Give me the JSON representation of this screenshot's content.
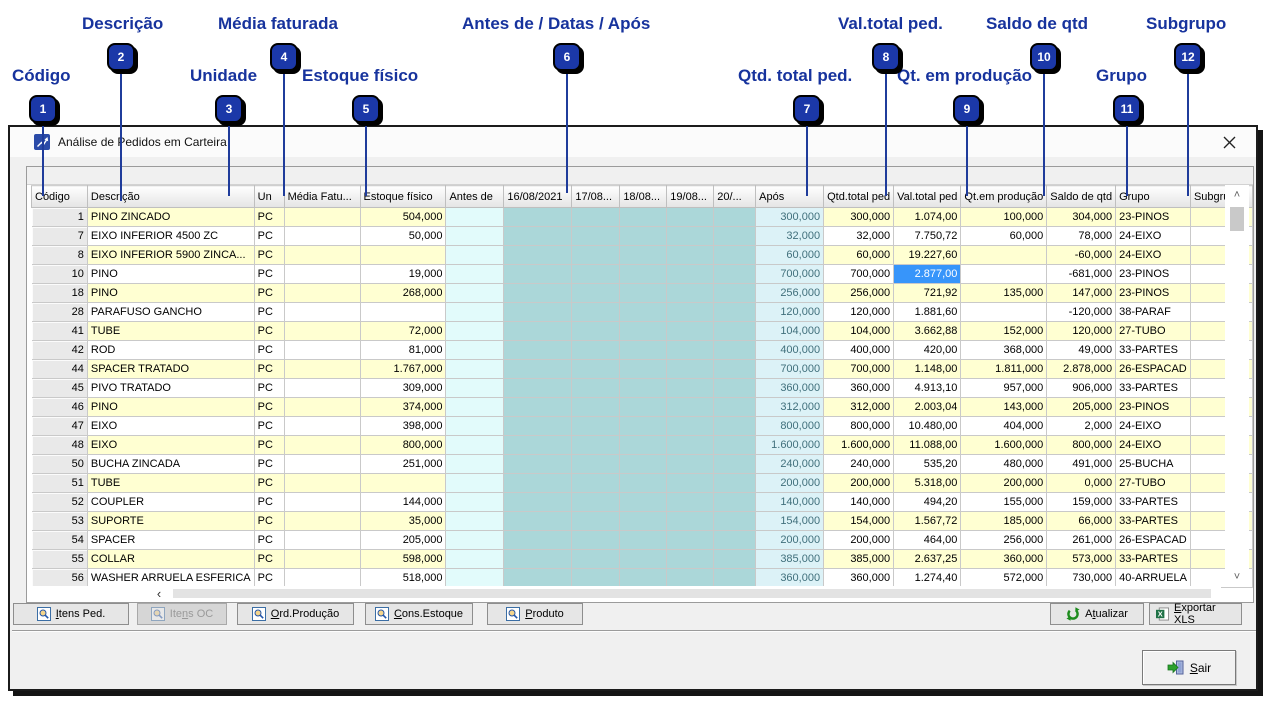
{
  "window": {
    "title": "Análise de Pedidos em Carteira"
  },
  "colors": {
    "annotation_navy": "#17339D",
    "stripe_yellow": "#FFFFD2",
    "date_teal": "#ABD7D9",
    "antes_cyan": "#E2FBFB",
    "apos_cyan": "#DCF2F7",
    "selected_blue": "#3795FA",
    "fixed_gray": "#E9E9E9"
  },
  "icons": {
    "app": "chart-arrow-icon",
    "close": "x-icon",
    "search": "magnifier-icon",
    "refresh": "circular-arrows-icon",
    "excel": "xls-sheet-icon",
    "exit": "door-arrow-icon",
    "scroll_up": "˄",
    "scroll_down": "˅",
    "scroll_left": "‹"
  },
  "annotations": [
    {
      "num": "1",
      "label": "Código"
    },
    {
      "num": "2",
      "label": "Descrição"
    },
    {
      "num": "3",
      "label": "Unidade"
    },
    {
      "num": "4",
      "label": "Média faturada"
    },
    {
      "num": "5",
      "label": "Estoque físico"
    },
    {
      "num": "6",
      "label": "Antes de / Datas / Após"
    },
    {
      "num": "7",
      "label": "Qtd. total ped."
    },
    {
      "num": "8",
      "label": "Val.total ped."
    },
    {
      "num": "9",
      "label": "Qt. em produção"
    },
    {
      "num": "10",
      "label": "Saldo de qtd"
    },
    {
      "num": "11",
      "label": "Grupo"
    },
    {
      "num": "12",
      "label": "Subgrupo"
    }
  ],
  "grid": {
    "columns": [
      {
        "key": "codigo",
        "label": "Código"
      },
      {
        "key": "descricao",
        "label": "Descrição"
      },
      {
        "key": "un",
        "label": "Un"
      },
      {
        "key": "media",
        "label": "Média Fatu..."
      },
      {
        "key": "estoque",
        "label": "Estoque físico"
      },
      {
        "key": "antes",
        "label": "Antes de"
      },
      {
        "key": "d1",
        "label": "16/08/2021"
      },
      {
        "key": "d2",
        "label": "17/08..."
      },
      {
        "key": "d3",
        "label": "18/08..."
      },
      {
        "key": "d4",
        "label": "19/08..."
      },
      {
        "key": "d5",
        "label": "20/..."
      },
      {
        "key": "apos",
        "label": "Após"
      },
      {
        "key": "qtd_total",
        "label": "Qtd.total ped"
      },
      {
        "key": "val_total",
        "label": "Val.total ped"
      },
      {
        "key": "qt_prod",
        "label": "Qt.em produção"
      },
      {
        "key": "saldo",
        "label": "Saldo de qtd"
      },
      {
        "key": "grupo",
        "label": "Grupo"
      },
      {
        "key": "subgrupo",
        "label": "Subgrupo"
      }
    ],
    "rows": [
      {
        "codigo": "1",
        "descricao": "PINO ZINCADO",
        "un": "PC",
        "media": "",
        "estoque": "504,000",
        "antes": "",
        "d1": "",
        "d2": "",
        "d3": "",
        "d4": "",
        "d5": "",
        "apos": "300,000",
        "qtd_total": "300,000",
        "val_total": "1.074,00",
        "qt_prod": "100,000",
        "saldo": "304,000",
        "grupo": "23-PINOS",
        "subgrupo": ""
      },
      {
        "codigo": "7",
        "descricao": "EIXO INFERIOR 4500 ZC",
        "un": "PC",
        "media": "",
        "estoque": "50,000",
        "antes": "",
        "d1": "",
        "d2": "",
        "d3": "",
        "d4": "",
        "d5": "",
        "apos": "32,000",
        "qtd_total": "32,000",
        "val_total": "7.750,72",
        "qt_prod": "60,000",
        "saldo": "78,000",
        "grupo": "24-EIXO",
        "subgrupo": ""
      },
      {
        "codigo": "8",
        "descricao": "EIXO INFERIOR 5900 ZINCA...",
        "un": "PC",
        "media": "",
        "estoque": "",
        "antes": "",
        "d1": "",
        "d2": "",
        "d3": "",
        "d4": "",
        "d5": "",
        "apos": "60,000",
        "qtd_total": "60,000",
        "val_total": "19.227,60",
        "qt_prod": "",
        "saldo": "-60,000",
        "grupo": "24-EIXO",
        "subgrupo": ""
      },
      {
        "codigo": "10",
        "descricao": "PINO",
        "un": "PC",
        "media": "",
        "estoque": "19,000",
        "antes": "",
        "d1": "",
        "d2": "",
        "d3": "",
        "d4": "",
        "d5": "",
        "apos": "700,000",
        "qtd_total": "700,000",
        "val_total": "2.877,00",
        "qt_prod": "",
        "saldo": "-681,000",
        "grupo": "23-PINOS",
        "subgrupo": "",
        "selected": "val_total"
      },
      {
        "codigo": "18",
        "descricao": "PINO",
        "un": "PC",
        "media": "",
        "estoque": "268,000",
        "antes": "",
        "d1": "",
        "d2": "",
        "d3": "",
        "d4": "",
        "d5": "",
        "apos": "256,000",
        "qtd_total": "256,000",
        "val_total": "721,92",
        "qt_prod": "135,000",
        "saldo": "147,000",
        "grupo": "23-PINOS",
        "subgrupo": ""
      },
      {
        "codigo": "28",
        "descricao": "PARAFUSO GANCHO",
        "un": "PC",
        "media": "",
        "estoque": "",
        "antes": "",
        "d1": "",
        "d2": "",
        "d3": "",
        "d4": "",
        "d5": "",
        "apos": "120,000",
        "qtd_total": "120,000",
        "val_total": "1.881,60",
        "qt_prod": "",
        "saldo": "-120,000",
        "grupo": "38-PARAF",
        "subgrupo": ""
      },
      {
        "codigo": "41",
        "descricao": "TUBE",
        "un": "PC",
        "media": "",
        "estoque": "72,000",
        "antes": "",
        "d1": "",
        "d2": "",
        "d3": "",
        "d4": "",
        "d5": "",
        "apos": "104,000",
        "qtd_total": "104,000",
        "val_total": "3.662,88",
        "qt_prod": "152,000",
        "saldo": "120,000",
        "grupo": "27-TUBO",
        "subgrupo": ""
      },
      {
        "codigo": "42",
        "descricao": "ROD",
        "un": "PC",
        "media": "",
        "estoque": "81,000",
        "antes": "",
        "d1": "",
        "d2": "",
        "d3": "",
        "d4": "",
        "d5": "",
        "apos": "400,000",
        "qtd_total": "400,000",
        "val_total": "420,00",
        "qt_prod": "368,000",
        "saldo": "49,000",
        "grupo": "33-PARTES",
        "subgrupo": ""
      },
      {
        "codigo": "44",
        "descricao": "SPACER TRATADO",
        "un": "PC",
        "media": "",
        "estoque": "1.767,000",
        "antes": "",
        "d1": "",
        "d2": "",
        "d3": "",
        "d4": "",
        "d5": "",
        "apos": "700,000",
        "qtd_total": "700,000",
        "val_total": "1.148,00",
        "qt_prod": "1.811,000",
        "saldo": "2.878,000",
        "grupo": "26-ESPACAD",
        "subgrupo": ""
      },
      {
        "codigo": "45",
        "descricao": "PIVO TRATADO",
        "un": "PC",
        "media": "",
        "estoque": "309,000",
        "antes": "",
        "d1": "",
        "d2": "",
        "d3": "",
        "d4": "",
        "d5": "",
        "apos": "360,000",
        "qtd_total": "360,000",
        "val_total": "4.913,10",
        "qt_prod": "957,000",
        "saldo": "906,000",
        "grupo": "33-PARTES",
        "subgrupo": ""
      },
      {
        "codigo": "46",
        "descricao": "PINO",
        "un": "PC",
        "media": "",
        "estoque": "374,000",
        "antes": "",
        "d1": "",
        "d2": "",
        "d3": "",
        "d4": "",
        "d5": "",
        "apos": "312,000",
        "qtd_total": "312,000",
        "val_total": "2.003,04",
        "qt_prod": "143,000",
        "saldo": "205,000",
        "grupo": "23-PINOS",
        "subgrupo": ""
      },
      {
        "codigo": "47",
        "descricao": "EIXO",
        "un": "PC",
        "media": "",
        "estoque": "398,000",
        "antes": "",
        "d1": "",
        "d2": "",
        "d3": "",
        "d4": "",
        "d5": "",
        "apos": "800,000",
        "qtd_total": "800,000",
        "val_total": "10.480,00",
        "qt_prod": "404,000",
        "saldo": "2,000",
        "grupo": "24-EIXO",
        "subgrupo": ""
      },
      {
        "codigo": "48",
        "descricao": "EIXO",
        "un": "PC",
        "media": "",
        "estoque": "800,000",
        "antes": "",
        "d1": "",
        "d2": "",
        "d3": "",
        "d4": "",
        "d5": "",
        "apos": "1.600,000",
        "qtd_total": "1.600,000",
        "val_total": "11.088,00",
        "qt_prod": "1.600,000",
        "saldo": "800,000",
        "grupo": "24-EIXO",
        "subgrupo": ""
      },
      {
        "codigo": "50",
        "descricao": "BUCHA ZINCADA",
        "un": "PC",
        "media": "",
        "estoque": "251,000",
        "antes": "",
        "d1": "",
        "d2": "",
        "d3": "",
        "d4": "",
        "d5": "",
        "apos": "240,000",
        "qtd_total": "240,000",
        "val_total": "535,20",
        "qt_prod": "480,000",
        "saldo": "491,000",
        "grupo": "25-BUCHA",
        "subgrupo": ""
      },
      {
        "codigo": "51",
        "descricao": "TUBE",
        "un": "PC",
        "media": "",
        "estoque": "",
        "antes": "",
        "d1": "",
        "d2": "",
        "d3": "",
        "d4": "",
        "d5": "",
        "apos": "200,000",
        "qtd_total": "200,000",
        "val_total": "5.318,00",
        "qt_prod": "200,000",
        "saldo": "0,000",
        "grupo": "27-TUBO",
        "subgrupo": ""
      },
      {
        "codigo": "52",
        "descricao": "COUPLER",
        "un": "PC",
        "media": "",
        "estoque": "144,000",
        "antes": "",
        "d1": "",
        "d2": "",
        "d3": "",
        "d4": "",
        "d5": "",
        "apos": "140,000",
        "qtd_total": "140,000",
        "val_total": "494,20",
        "qt_prod": "155,000",
        "saldo": "159,000",
        "grupo": "33-PARTES",
        "subgrupo": ""
      },
      {
        "codigo": "53",
        "descricao": "SUPORTE",
        "un": "PC",
        "media": "",
        "estoque": "35,000",
        "antes": "",
        "d1": "",
        "d2": "",
        "d3": "",
        "d4": "",
        "d5": "",
        "apos": "154,000",
        "qtd_total": "154,000",
        "val_total": "1.567,72",
        "qt_prod": "185,000",
        "saldo": "66,000",
        "grupo": "33-PARTES",
        "subgrupo": ""
      },
      {
        "codigo": "54",
        "descricao": "SPACER",
        "un": "PC",
        "media": "",
        "estoque": "205,000",
        "antes": "",
        "d1": "",
        "d2": "",
        "d3": "",
        "d4": "",
        "d5": "",
        "apos": "200,000",
        "qtd_total": "200,000",
        "val_total": "464,00",
        "qt_prod": "256,000",
        "saldo": "261,000",
        "grupo": "26-ESPACAD",
        "subgrupo": ""
      },
      {
        "codigo": "55",
        "descricao": "COLLAR",
        "un": "PC",
        "media": "",
        "estoque": "598,000",
        "antes": "",
        "d1": "",
        "d2": "",
        "d3": "",
        "d4": "",
        "d5": "",
        "apos": "385,000",
        "qtd_total": "385,000",
        "val_total": "2.637,25",
        "qt_prod": "360,000",
        "saldo": "573,000",
        "grupo": "33-PARTES",
        "subgrupo": ""
      },
      {
        "codigo": "56",
        "descricao": "WASHER ARRUELA ESFERICA",
        "un": "PC",
        "media": "",
        "estoque": "518,000",
        "antes": "",
        "d1": "",
        "d2": "",
        "d3": "",
        "d4": "",
        "d5": "",
        "apos": "360,000",
        "qtd_total": "360,000",
        "val_total": "1.274,40",
        "qt_prod": "572,000",
        "saldo": "730,000",
        "grupo": "40-ARRUELA",
        "subgrupo": ""
      }
    ]
  },
  "toolbar": {
    "itens_ped": {
      "pre": "",
      "u": "I",
      "post": "tens Ped."
    },
    "itens_oc": {
      "pre": "Ite",
      "u": "n",
      "post": "s OC"
    },
    "ord_producao": {
      "pre": "",
      "u": "O",
      "post": "rd.Produção"
    },
    "cons_estoque": {
      "pre": "",
      "u": "C",
      "post": "ons.Estoque"
    },
    "produto": {
      "pre": "",
      "u": "P",
      "post": "roduto"
    },
    "atualizar": {
      "pre": "A",
      "u": "t",
      "post": "ualizar"
    },
    "exportar_xls": {
      "pre": "",
      "u": "E",
      "post": "xportar XLS"
    },
    "sair": {
      "pre": "",
      "u": "S",
      "post": "air"
    }
  }
}
